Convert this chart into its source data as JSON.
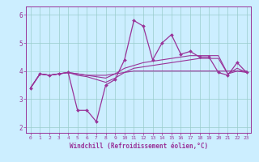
{
  "xlabel": "Windchill (Refroidissement éolien,°C)",
  "background_color": "#cceeff",
  "grid_color": "#99cccc",
  "line_color": "#993399",
  "marker_color": "#993399",
  "xlim": [
    -0.5,
    23.5
  ],
  "ylim": [
    1.8,
    6.3
  ],
  "yticks": [
    2,
    3,
    4,
    5,
    6
  ],
  "xticks": [
    0,
    1,
    2,
    3,
    4,
    5,
    6,
    7,
    8,
    9,
    10,
    11,
    12,
    13,
    14,
    15,
    16,
    17,
    18,
    19,
    20,
    21,
    22,
    23
  ],
  "series": [
    [
      3.4,
      3.9,
      3.85,
      3.9,
      3.95,
      2.6,
      2.6,
      2.2,
      3.5,
      3.7,
      4.4,
      5.8,
      5.6,
      4.4,
      5.0,
      5.3,
      4.6,
      4.7,
      4.5,
      4.5,
      3.95,
      3.85,
      4.3,
      3.95
    ],
    [
      3.4,
      3.9,
      3.85,
      3.9,
      3.95,
      3.9,
      3.85,
      3.85,
      3.85,
      3.9,
      3.95,
      4.0,
      4.0,
      4.0,
      4.0,
      4.0,
      4.0,
      4.0,
      4.0,
      4.0,
      4.0,
      4.0,
      4.0,
      4.0
    ],
    [
      3.4,
      3.9,
      3.85,
      3.9,
      3.95,
      3.9,
      3.85,
      3.8,
      3.75,
      3.9,
      4.1,
      4.2,
      4.3,
      4.35,
      4.4,
      4.45,
      4.5,
      4.55,
      4.55,
      4.55,
      4.55,
      3.9,
      4.0,
      3.95
    ],
    [
      3.4,
      3.9,
      3.85,
      3.9,
      3.95,
      3.85,
      3.8,
      3.7,
      3.6,
      3.75,
      3.95,
      4.1,
      4.15,
      4.2,
      4.25,
      4.3,
      4.35,
      4.4,
      4.45,
      4.45,
      4.45,
      3.9,
      4.1,
      3.95
    ]
  ]
}
